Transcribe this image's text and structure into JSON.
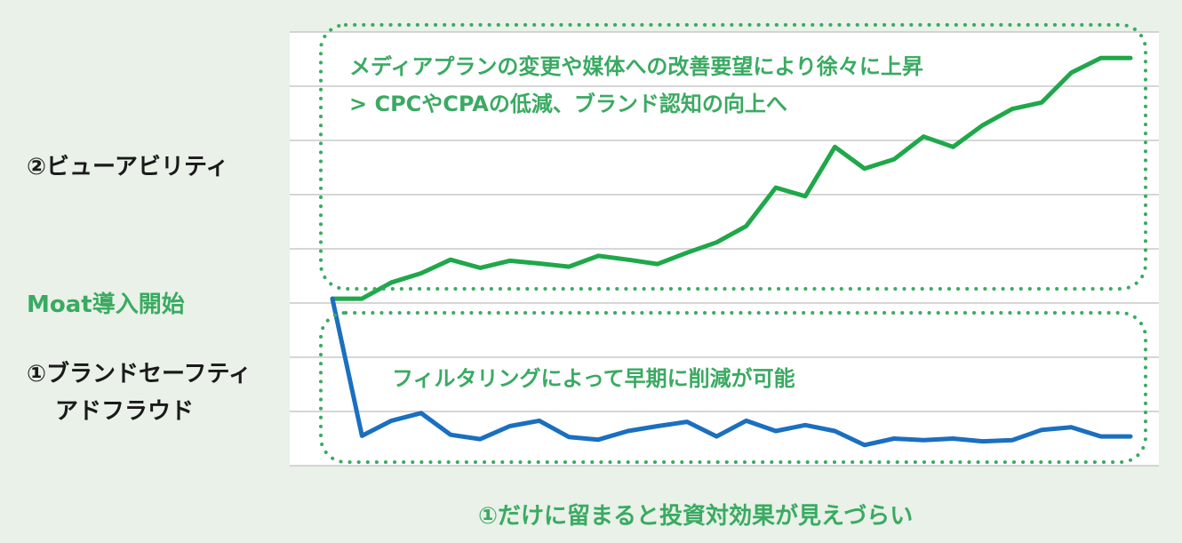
{
  "labels": {
    "viewability": "②ビューアビリティ",
    "moat_start": "Moat導入開始",
    "brand_safety_line1": "①ブランドセーフティ",
    "brand_safety_line2": "アドフラウド"
  },
  "annotations": {
    "upper_line1": "メディアプランの変更や媒体への改善要望により徐々に上昇",
    "upper_line2": "> CPCやCPAの低減、ブランド認知の向上へ",
    "lower": "フィルタリングによって早期に削減が可能"
  },
  "footer_note": "①だけに留まると投資対効果が見えづらい",
  "colors": {
    "background": "#e9f1e8",
    "chart_background": "#ffffff",
    "viewability_line": "#1fa84a",
    "brand_safety_line": "#1a6fc0",
    "annotation_text": "#3aaa62",
    "dotted_border": "#3aaa62"
  },
  "chart_data": {
    "type": "line",
    "x": [
      0,
      1,
      2,
      3,
      4,
      5,
      6,
      7,
      8,
      9,
      10,
      11,
      12,
      13,
      14,
      15,
      16,
      17,
      18,
      19,
      20,
      21,
      22,
      23,
      24,
      25,
      26,
      27
    ],
    "ylim": [
      0,
      8
    ],
    "grid": true,
    "series": [
      {
        "values": [
          3.08,
          3.08,
          3.38,
          3.55,
          3.8,
          3.65,
          3.78,
          3.73,
          3.67,
          3.87,
          3.8,
          3.72,
          3.93,
          4.12,
          4.42,
          5.13,
          4.97,
          5.88,
          5.48,
          5.65,
          6.07,
          5.88,
          6.28,
          6.58,
          6.7,
          7.25,
          7.52,
          7.52
        ]
      },
      {
        "values": [
          3.08,
          0.55,
          0.83,
          0.97,
          0.57,
          0.49,
          0.73,
          0.83,
          0.53,
          0.48,
          0.64,
          0.73,
          0.81,
          0.54,
          0.83,
          0.64,
          0.75,
          0.64,
          0.38,
          0.5,
          0.47,
          0.5,
          0.45,
          0.47,
          0.66,
          0.71,
          0.54,
          0.54
        ]
      }
    ]
  }
}
